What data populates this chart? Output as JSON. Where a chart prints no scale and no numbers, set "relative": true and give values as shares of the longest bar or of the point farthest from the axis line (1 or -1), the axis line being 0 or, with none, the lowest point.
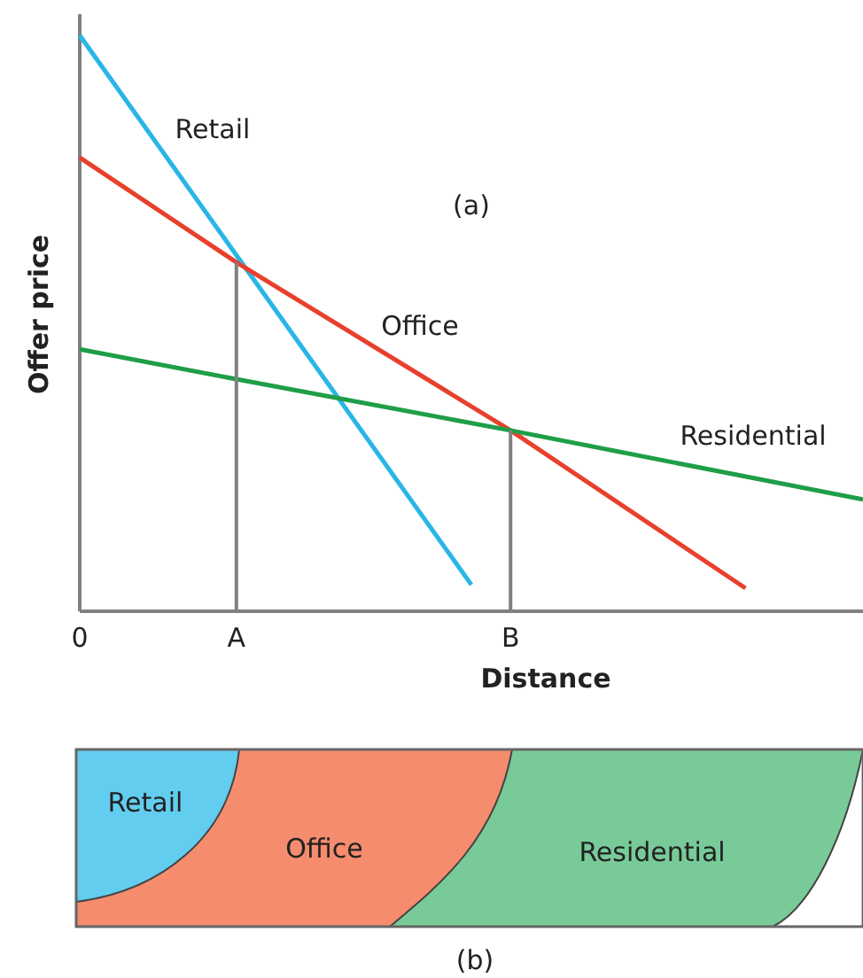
{
  "chart_data": [
    {
      "type": "line",
      "relative": true,
      "xlabel": "Distance",
      "ylabel": "Offer price",
      "categories": [
        "0",
        null,
        null,
        null,
        "A",
        null,
        null,
        null,
        null,
        null,
        null,
        "B",
        null,
        null,
        null,
        null,
        null,
        null,
        null,
        null,
        null
      ],
      "annotations": [
        "(a)"
      ],
      "line_style": "solid",
      "marker": "none",
      "grid": false,
      "series": [
        {
          "name": "Retail",
          "color": "#29b6e6",
          "values": [
            1,
            null,
            null,
            null,
            null,
            null,
            null,
            null,
            null,
            null,
            0.046,
            null,
            null,
            null,
            null,
            null,
            null,
            null,
            null,
            null,
            null
          ]
        },
        {
          "name": "Office",
          "color": "#e8402c",
          "values": [
            0.788,
            null,
            null,
            null,
            0.606,
            null,
            null,
            null,
            null,
            null,
            null,
            0.314,
            null,
            null,
            null,
            null,
            null,
            0.04,
            null,
            null,
            null
          ]
        },
        {
          "name": "Residential",
          "color": "#1f9e48",
          "values": [
            0.455,
            null,
            null,
            null,
            0.403,
            null,
            null,
            null,
            null,
            null,
            null,
            0.314,
            null,
            null,
            null,
            null,
            null,
            null,
            null,
            null,
            0.194
          ]
        },
        {
          "color": "#808080",
          "x": [
            "A",
            "A"
          ],
          "values": [
            0,
            0.606
          ]
        },
        {
          "color": "#808080",
          "x": [
            "B",
            "B"
          ],
          "values": [
            0,
            0.314
          ]
        }
      ]
    },
    {
      "type": "other",
      "annotations": [
        "Retail",
        "Office",
        "Residential",
        "(b)"
      ]
    }
  ]
}
